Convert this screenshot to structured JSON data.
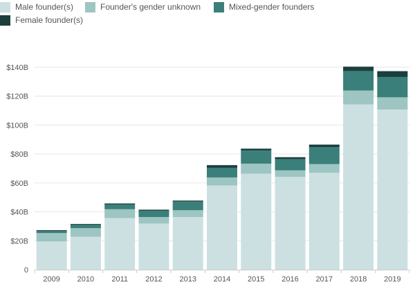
{
  "chart_data": {
    "type": "bar",
    "stacked": true,
    "title": "",
    "xlabel": "",
    "ylabel": "",
    "categories": [
      "2009",
      "2010",
      "2011",
      "2012",
      "2013",
      "2014",
      "2015",
      "2016",
      "2017",
      "2018",
      "2019"
    ],
    "series": [
      {
        "name": "Male founder(s)",
        "color": "#cde0e1",
        "values": [
          19.5,
          22.8,
          35.7,
          31.9,
          36.4,
          58.2,
          66.4,
          64.2,
          67.0,
          114.3,
          110.7
        ]
      },
      {
        "name": "Founder's gender unknown",
        "color": "#9dc5c2",
        "values": [
          5.8,
          5.9,
          6.1,
          4.5,
          4.7,
          5.6,
          6.9,
          4.5,
          6.0,
          9.6,
          8.5
        ]
      },
      {
        "name": "Mixed-gender founders",
        "color": "#3a7f7a",
        "values": [
          1.4,
          2.3,
          3.3,
          4.4,
          6.0,
          6.7,
          9.1,
          7.8,
          11.7,
          13.5,
          14.1
        ]
      },
      {
        "name": "Female founder(s)",
        "color": "#1b3f3d",
        "values": [
          0.6,
          0.6,
          0.7,
          0.7,
          0.7,
          1.8,
          1.3,
          1.3,
          1.8,
          3.0,
          4.0
        ]
      }
    ],
    "ylim": [
      0,
      140
    ],
    "yticks": [
      0,
      20,
      40,
      60,
      80,
      100,
      120,
      140
    ],
    "ytick_labels": [
      "0",
      "$20B",
      "$40B",
      "$60B",
      "$80B",
      "$100B",
      "$120B",
      "$140B"
    ],
    "grid": true,
    "legend_position": "top-left"
  }
}
